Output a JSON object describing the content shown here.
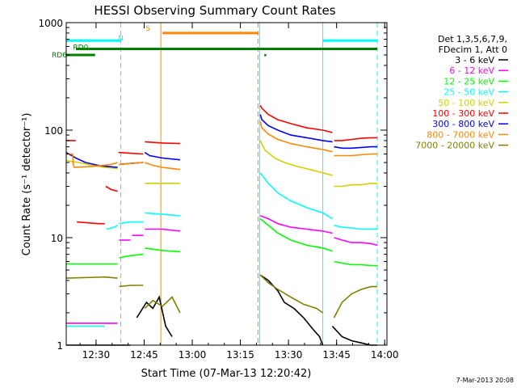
{
  "chart_data": {
    "type": "line",
    "title": "HESSI Observing Summary Count Rates",
    "xlabel": "Start Time (07-Mar-13 12:20:42)",
    "ylabel": "Count Rate (s⁻¹ detector⁻¹)",
    "yscale": "log",
    "ylim": [
      1,
      1000
    ],
    "xlim_minutes": [
      0,
      100
    ],
    "x_tick_labels": [
      "12:30",
      "12:45",
      "13:00",
      "13:15",
      "13:30",
      "13:45",
      "14:00"
    ],
    "x_tick_minutes": [
      9.3,
      24.3,
      39.3,
      54.3,
      69.3,
      84.3,
      99.3
    ],
    "y_tick_labels": [
      "1",
      "10",
      "100",
      "1000"
    ],
    "y_tick_values": [
      1,
      10,
      100,
      1000
    ],
    "footer_date": "7-Mar-2013 20:08",
    "legend": {
      "header": [
        "Det 1,3,5,6,7,9,",
        "FDecim 1, Att 0"
      ],
      "placement": "right"
    },
    "series": [
      {
        "name": "3 - 6 keV",
        "color": "#000000",
        "segments": [
          {
            "x": [
              0,
              5,
              6,
              7,
              10,
              12,
              13,
              15,
              17,
              20
            ],
            "y": [
              1,
              1,
              1,
              1,
              1,
              1,
              1,
              1,
              1,
              1
            ]
          },
          {
            "x": [
              22,
              25,
              27,
              29,
              31,
              33
            ],
            "y": [
              1.8,
              2.5,
              2.2,
              2.8,
              1.5,
              1.2
            ]
          },
          {
            "x": [
              60.5,
              63,
              66,
              68,
              71,
              74,
              77,
              79,
              80
            ],
            "y": [
              4.5,
              4,
              3.2,
              2.5,
              2.2,
              1.8,
              1.4,
              1.2,
              1
            ]
          },
          {
            "x": [
              83,
              86,
              89,
              92,
              95,
              97
            ],
            "y": [
              1.5,
              1.2,
              1.1,
              1.05,
              1,
              1
            ]
          }
        ]
      },
      {
        "name": "6 - 12 keV",
        "color": "#ff00ff",
        "segments": [
          {
            "x": [
              0,
              10,
              16
            ],
            "y": [
              1.6,
              1.6,
              1.6
            ]
          },
          {
            "x": [
              16.5,
              20
            ],
            "y": [
              9.5,
              9.5
            ]
          },
          {
            "x": [
              20.5,
              24
            ],
            "y": [
              10.5,
              10.5
            ]
          },
          {
            "x": [
              24.5,
              30,
              35.5
            ],
            "y": [
              12,
              12,
              11.5
            ]
          },
          {
            "x": [
              60.5,
              63,
              66,
              70,
              75,
              80,
              83
            ],
            "y": [
              16,
              15,
              13.5,
              12.5,
              12,
              11.5,
              11
            ]
          },
          {
            "x": [
              83.5,
              86,
              89,
              92,
              95,
              97
            ],
            "y": [
              10,
              9.5,
              9,
              9,
              8.8,
              8.5
            ]
          }
        ]
      },
      {
        "name": "12 - 25 keV",
        "color": "#00ff00",
        "segments": [
          {
            "x": [
              0,
              16
            ],
            "y": [
              5.7,
              5.7
            ]
          },
          {
            "x": [
              16.5,
              20,
              24
            ],
            "y": [
              6.5,
              6.8,
              7
            ]
          },
          {
            "x": [
              24.5,
              30,
              35.5
            ],
            "y": [
              8,
              7.6,
              7.4
            ]
          },
          {
            "x": [
              60.5,
              63,
              66,
              70,
              75,
              80,
              83
            ],
            "y": [
              15,
              13,
              11,
              9.5,
              8.5,
              8,
              7.5
            ]
          },
          {
            "x": [
              83.5,
              86,
              89,
              92,
              95,
              97
            ],
            "y": [
              6,
              5.8,
              5.6,
              5.6,
              5.5,
              5.5
            ]
          }
        ]
      },
      {
        "name": "25 - 50 keV",
        "color": "#00ffff",
        "segments": [
          {
            "x": [
              0,
              12
            ],
            "y": [
              1.5,
              1.5
            ]
          },
          {
            "x": [
              12.5,
              15,
              16
            ],
            "y": [
              12,
              12.5,
              13
            ]
          },
          {
            "x": [
              16.5,
              20,
              24
            ],
            "y": [
              13.5,
              14,
              14
            ]
          },
          {
            "x": [
              24.5,
              30,
              35.5
            ],
            "y": [
              17,
              16.5,
              16
            ]
          },
          {
            "x": [
              60.5,
              63,
              66,
              70,
              75,
              80,
              83
            ],
            "y": [
              40,
              32,
              26,
              22,
              19,
              17,
              15
            ]
          },
          {
            "x": [
              83.5,
              86,
              89,
              92,
              95,
              97
            ],
            "y": [
              13,
              12.5,
              12.3,
              12,
              12,
              12
            ]
          }
        ]
      },
      {
        "name": "50 - 100 keV",
        "color": "#d0d000",
        "segments": [
          {
            "x": [
              0,
              4,
              8,
              12,
              16
            ],
            "y": [
              52,
              50,
              47,
              45,
              44
            ]
          },
          {
            "x": [
              16.5,
              20,
              24
            ],
            "y": [
              48,
              49,
              50
            ]
          },
          {
            "x": [
              24.5,
              30,
              35.5
            ],
            "y": [
              32,
              32,
              32
            ]
          },
          {
            "x": [
              60.5,
              62,
              65,
              68,
              72,
              76,
              80,
              83
            ],
            "y": [
              80,
              65,
              55,
              50,
              46,
              43,
              40,
              38
            ]
          },
          {
            "x": [
              83.5,
              86,
              89,
              92,
              95,
              97
            ],
            "y": [
              30,
              30,
              31,
              31,
              32,
              32
            ]
          }
        ]
      },
      {
        "name": "100 - 300 keV",
        "color": "#ff0000",
        "segments": [
          {
            "x": [
              0,
              3
            ],
            "y": [
              80,
              80
            ]
          },
          {
            "x": [
              3.3,
              10,
              12
            ],
            "y": [
              14,
              13.5,
              13.5
            ]
          },
          {
            "x": [
              12.3,
              14,
              16
            ],
            "y": [
              30,
              28,
              27
            ]
          },
          {
            "x": [
              16.3,
              20,
              24
            ],
            "y": [
              62,
              61,
              60
            ]
          },
          {
            "x": [
              24.5,
              30,
              35.5
            ],
            "y": [
              78,
              76,
              75
            ]
          },
          {
            "x": [
              60.5,
              61,
              63,
              66,
              70,
              75,
              80,
              83
            ],
            "y": [
              170,
              160,
              140,
              125,
              115,
              105,
              100,
              95
            ]
          },
          {
            "x": [
              83.5,
              86,
              89,
              92,
              95,
              97
            ],
            "y": [
              80,
              80,
              82,
              84,
              85,
              85
            ]
          }
        ]
      },
      {
        "name": "300 - 800 keV",
        "color": "#0000ff",
        "segments": [
          {
            "x": [
              0,
              3,
              6,
              10,
              13,
              16
            ],
            "y": [
              62,
              55,
              50,
              47,
              46,
              45
            ]
          },
          {
            "x": [
              16.5,
              20,
              24
            ],
            "y": [
              48,
              49,
              50
            ]
          },
          {
            "x": [
              24.5,
              26,
              30,
              35.5
            ],
            "y": [
              62,
              58,
              55,
              53
            ]
          },
          {
            "x": [
              60.5,
              61,
              63,
              66,
              70,
              75,
              80,
              83
            ],
            "y": [
              140,
              125,
              110,
              100,
              90,
              85,
              80,
              78
            ]
          },
          {
            "x": [
              83.5,
              86,
              89,
              92,
              95,
              97
            ],
            "y": [
              70,
              68,
              68,
              69,
              70,
              70
            ]
          }
        ]
      },
      {
        "name": "800 - 7000 keV",
        "color": "#ff8800",
        "segments": [
          {
            "x": [
              0,
              2,
              2.2,
              2.5,
              8,
              14,
              16
            ],
            "y": [
              60,
              60,
              48,
              45,
              46,
              48,
              50
            ]
          },
          {
            "x": [
              16.5,
              20,
              24
            ],
            "y": [
              48,
              49,
              50
            ]
          },
          {
            "x": [
              24.5,
              27,
              30,
              35.5
            ],
            "y": [
              50,
              47,
              45,
              43
            ]
          },
          {
            "x": [
              60.5,
              61,
              63,
              66,
              70,
              75,
              80,
              83
            ],
            "y": [
              120,
              105,
              92,
              82,
              75,
              70,
              66,
              63
            ]
          },
          {
            "x": [
              83.5,
              86,
              89,
              92,
              95,
              97
            ],
            "y": [
              58,
              58,
              58,
              59,
              60,
              60
            ]
          }
        ]
      },
      {
        "name": "7000 - 20000 keV",
        "color": "#808000",
        "segments": [
          {
            "x": [
              0,
              12,
              16
            ],
            "y": [
              4.2,
              4.3,
              4.2
            ]
          },
          {
            "x": [
              16.5,
              20,
              24
            ],
            "y": [
              3.5,
              3.6,
              3.6
            ]
          },
          {
            "x": [
              24.5,
              27,
              30,
              33,
              35.5
            ],
            "y": [
              2.2,
              2.6,
              2.3,
              2.8,
              2
            ]
          },
          {
            "x": [
              60.5,
              63,
              66,
              70,
              74,
              78,
              80
            ],
            "y": [
              4.5,
              3.8,
              3.3,
              2.8,
              2.4,
              2.2,
              2
            ]
          },
          {
            "x": [
              83.5,
              86,
              89,
              92,
              95,
              97
            ],
            "y": [
              1.8,
              2.5,
              3,
              3.3,
              3.5,
              3.5
            ]
          }
        ]
      }
    ],
    "flag_bars": [
      {
        "label": "",
        "color": "#00ffff",
        "y": 680,
        "x0": 0,
        "x1": 17
      },
      {
        "label": "",
        "color": "#00ffff",
        "y": 680,
        "x0": 80,
        "x1": 97
      },
      {
        "label": "RD0",
        "color": "#008000",
        "y": 570,
        "x0": 3,
        "x1": 17
      },
      {
        "label": "",
        "color": "#008000",
        "y": 570,
        "x0": 17,
        "x1": 97
      },
      {
        "label": "RD6",
        "color": "#008000",
        "y": 500,
        "x0": 0,
        "x1": 9
      },
      {
        "label": "S",
        "color": "#ff8800",
        "y": 800,
        "x0": 30,
        "x1": 60
      }
    ],
    "flag_labels": [
      {
        "text": "N",
        "color": "#00ffff",
        "x": 17,
        "y": 730
      },
      {
        "text": "RD0",
        "color": "#008000",
        "x": 4.5,
        "y": 600
      },
      {
        "text": "RD6",
        "color": "#008000",
        "y": 510
      },
      {
        "text": "S",
        "color": "#ff8800",
        "x": 25.5,
        "y": 900
      }
    ],
    "event_dot": {
      "x": 62,
      "y": 500,
      "color": "#008000"
    },
    "vlines": [
      {
        "x": 0,
        "color": "#00ffff",
        "style": "solid"
      },
      {
        "x": 17,
        "color": "#00ffff",
        "style": "dashed"
      },
      {
        "x": 29.5,
        "color": "#ff8800",
        "style": "solid"
      },
      {
        "x": 59.8,
        "color": "#ff8800",
        "style": "dashed"
      },
      {
        "x": 60.3,
        "color": "#00ffff",
        "style": "solid"
      },
      {
        "x": 80,
        "color": "#00ffff",
        "style": "solid"
      },
      {
        "x": 97,
        "color": "#00ffff",
        "style": "dashed"
      }
    ]
  }
}
